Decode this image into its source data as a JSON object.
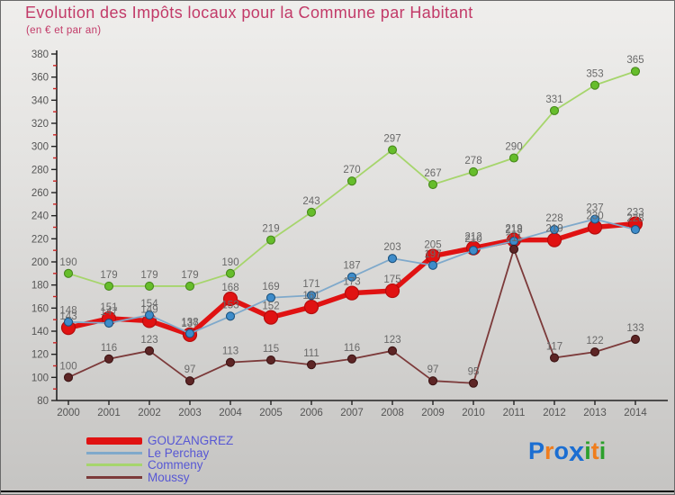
{
  "title": "Evolution des Impôts locaux pour la Commune par Habitant",
  "subtitle": "(en € et par an)",
  "title_color": "#c23a68",
  "chart_data": {
    "type": "line",
    "x": [
      2000,
      2001,
      2002,
      2003,
      2004,
      2005,
      2006,
      2007,
      2008,
      2009,
      2010,
      2011,
      2012,
      2013,
      2014
    ],
    "series": [
      {
        "name": "GOUZANGREZ",
        "values": [
          143,
          151,
          149,
          137,
          168,
          152,
          161,
          173,
          175,
          205,
          212,
          219,
          219,
          230,
          233
        ],
        "line_color": "#e01212",
        "dot_color": "#e01212",
        "dot_edge": "#b50d0d",
        "thick": true
      },
      {
        "name": "Le Perchay",
        "values": [
          148,
          147,
          154,
          138,
          153,
          169,
          171,
          187,
          203,
          197,
          210,
          218,
          228,
          237,
          228
        ],
        "line_color": "#7fa9cb",
        "dot_color": "#3e8cca",
        "dot_edge": "#1d537e",
        "thick": false
      },
      {
        "name": "Commeny",
        "values": [
          190,
          179,
          179,
          179,
          190,
          219,
          243,
          270,
          297,
          267,
          278,
          290,
          331,
          353,
          365
        ],
        "line_color": "#a6d56c",
        "dot_color": "#66bd2b",
        "dot_edge": "#47881c",
        "thick": false
      },
      {
        "name": "Moussy",
        "values": [
          100,
          116,
          123,
          97,
          113,
          115,
          111,
          116,
          123,
          97,
          95,
          211,
          117,
          122,
          133
        ],
        "line_color": "#7c3a3a",
        "dot_color": "#5d2525",
        "dot_edge": "#3c1414",
        "thick": false
      }
    ],
    "ylim": [
      80,
      380
    ],
    "ytick_step": 20,
    "grid": false,
    "legend_position": "bottom-left",
    "value_label_color": "#696969",
    "axis_color": "#222222",
    "tick_label_color": "#555555",
    "minor_tick_color": "#cc2222"
  },
  "legend": {
    "items": [
      {
        "label": "GOUZANGREZ"
      },
      {
        "label": "Le Perchay"
      },
      {
        "label": "Commeny"
      },
      {
        "label": "Moussy"
      }
    ]
  },
  "logo": {
    "letters": [
      {
        "ch": "P",
        "color": "#1b6ed2",
        "big": false
      },
      {
        "ch": "r",
        "color": "#f07d1d",
        "big": false
      },
      {
        "ch": "o",
        "color": "#1b6ed2",
        "big": false
      },
      {
        "ch": "x",
        "color": "#1b6ed2",
        "big": true
      },
      {
        "ch": "i",
        "color": "#2ca02c",
        "big": false
      },
      {
        "ch": "t",
        "color": "#f07d1d",
        "big": false
      },
      {
        "ch": "i",
        "color": "#2ca02c",
        "big": false
      }
    ]
  }
}
